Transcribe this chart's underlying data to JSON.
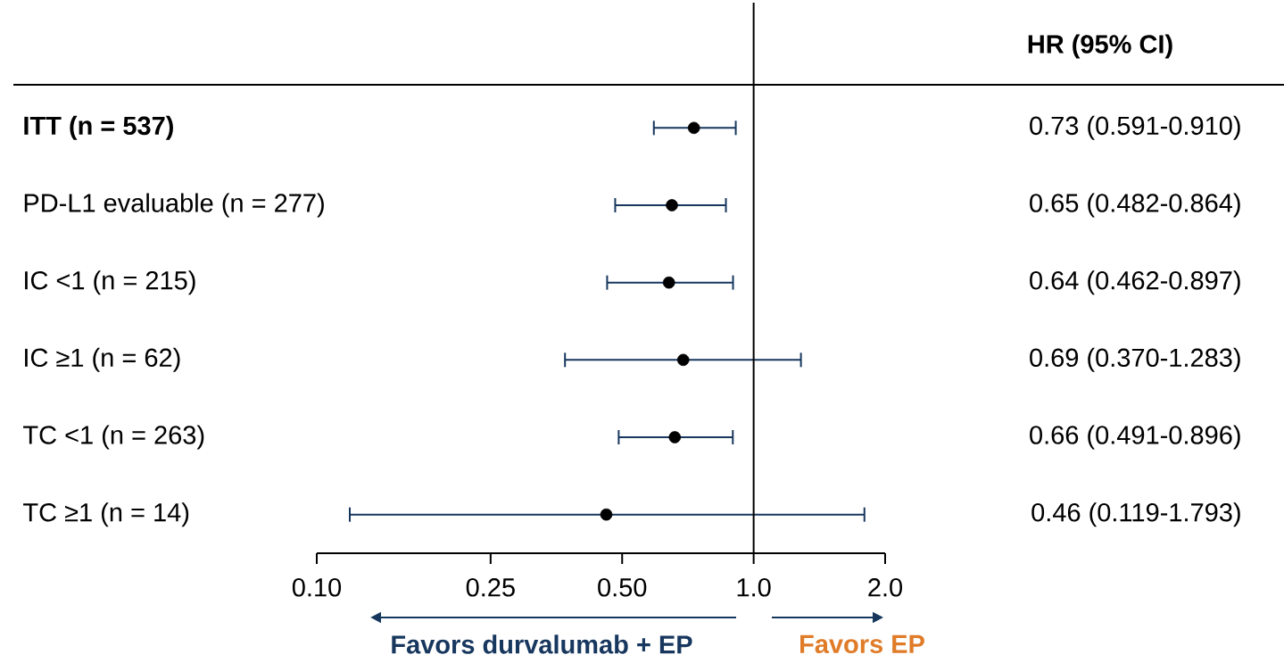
{
  "chart_data": {
    "type": "scatter",
    "orientation": "horizontal",
    "categories": [
      "ITT (n = 537)",
      "PD-L1 evaluable (n = 277)",
      "IC <1 (n = 215)",
      "IC ≥1 (n = 62)",
      "TC <1 (n = 263)",
      "TC ≥1 (n = 14)"
    ],
    "values": [
      0.73,
      0.65,
      0.64,
      0.69,
      0.66,
      0.46
    ],
    "errors": [
      [
        0.591,
        0.91
      ],
      [
        0.482,
        0.864
      ],
      [
        0.462,
        0.897
      ],
      [
        0.37,
        1.283
      ],
      [
        0.491,
        0.896
      ],
      [
        0.119,
        1.793
      ]
    ],
    "value_labels": [
      "0.73 (0.591-0.910)",
      "0.65 (0.482-0.864)",
      "0.64 (0.462-0.897)",
      "0.69 (0.370-1.283)",
      "0.66 (0.491-0.896)",
      "0.46 (0.119-1.793)"
    ],
    "color": "#000000",
    "marker": "circle",
    "log": "x",
    "grid": false,
    "tick_labels": "x",
    "xlim": [
      0.1,
      2.0
    ],
    "xticks": [
      {
        "value": 0.1,
        "label": "0.10"
      },
      0.25,
      {
        "value": 0.5,
        "label": "0.50"
      },
      {
        "value": 1,
        "label": "1.0"
      },
      {
        "value": 2,
        "label": "2.0"
      }
    ],
    "ref_lines": [
      {
        "axis": "x",
        "value": 1
      }
    ],
    "annotations": [
      "HR (95% CI)",
      "Favors durvalumab + EP",
      "Favors EP"
    ]
  }
}
